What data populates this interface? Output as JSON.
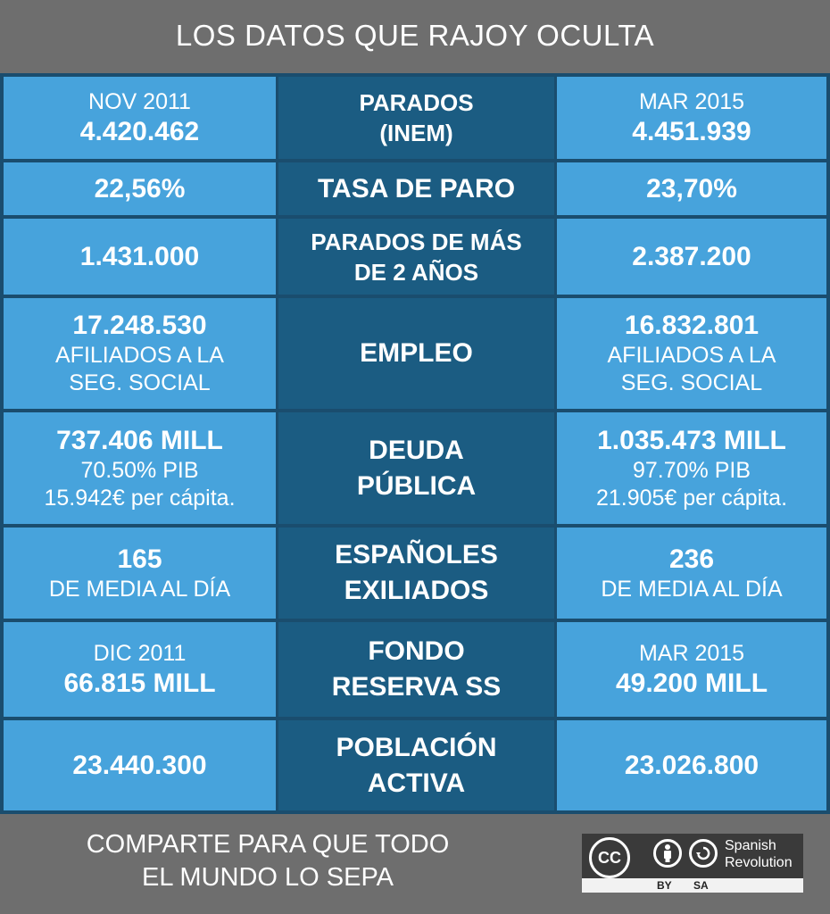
{
  "title": "LOS DATOS QUE RAJOY OCULTA",
  "rows": [
    {
      "left": {
        "top": "NOV 2011",
        "value": "4.420.462"
      },
      "label": [
        "PARADOS",
        "(INEM)"
      ],
      "right": {
        "top": "MAR 2015",
        "value": "4.451.939"
      }
    },
    {
      "left": {
        "value": "22,56%"
      },
      "label": [
        "TASA DE PARO"
      ],
      "right": {
        "value": "23,70%"
      }
    },
    {
      "left": {
        "value": "1.431.000"
      },
      "label": [
        "PARADOS DE MÁS",
        "DE 2 AÑOS"
      ],
      "right": {
        "value": "2.387.200"
      }
    },
    {
      "left": {
        "value": "17.248.530",
        "sub1": "AFILIADOS A LA",
        "sub2": "SEG. SOCIAL"
      },
      "label": [
        "EMPLEO"
      ],
      "right": {
        "value": "16.832.801",
        "sub1": "AFILIADOS A LA",
        "sub2": "SEG. SOCIAL"
      }
    },
    {
      "left": {
        "value": "737.406 MILL",
        "sub1": "70.50% PIB",
        "sub2": "15.942€ per cápita."
      },
      "label": [
        "DEUDA",
        "PÚBLICA"
      ],
      "right": {
        "value": "1.035.473 MILL",
        "sub1": "97.70% PIB",
        "sub2": "21.905€ per cápita."
      }
    },
    {
      "left": {
        "value": "165",
        "sub1": "DE MEDIA AL DÍA"
      },
      "label": [
        "ESPAÑOLES",
        "EXILIADOS"
      ],
      "right": {
        "value": "236",
        "sub1": "DE MEDIA AL DÍA"
      }
    },
    {
      "left": {
        "top": "DIC 2011",
        "value": "66.815 MILL"
      },
      "label": [
        "FONDO",
        "RESERVA SS"
      ],
      "right": {
        "top": "MAR 2015",
        "value": "49.200 MILL"
      }
    },
    {
      "left": {
        "value": "23.440.300"
      },
      "label": [
        "POBLACIÓN",
        "ACTIVA"
      ],
      "right": {
        "value": "23.026.800"
      }
    }
  ],
  "footer": {
    "line1": "COMPARTE PARA QUE TODO",
    "line2": "EL MUNDO LO SEPA",
    "license": {
      "cc": "CC",
      "by": "BY",
      "sa": "SA",
      "brand1": "Spanish",
      "brand2": "Revolution"
    }
  },
  "colors": {
    "side": "#47a3dc",
    "mid": "#1b5c82",
    "bg": "#6e6e6e"
  }
}
